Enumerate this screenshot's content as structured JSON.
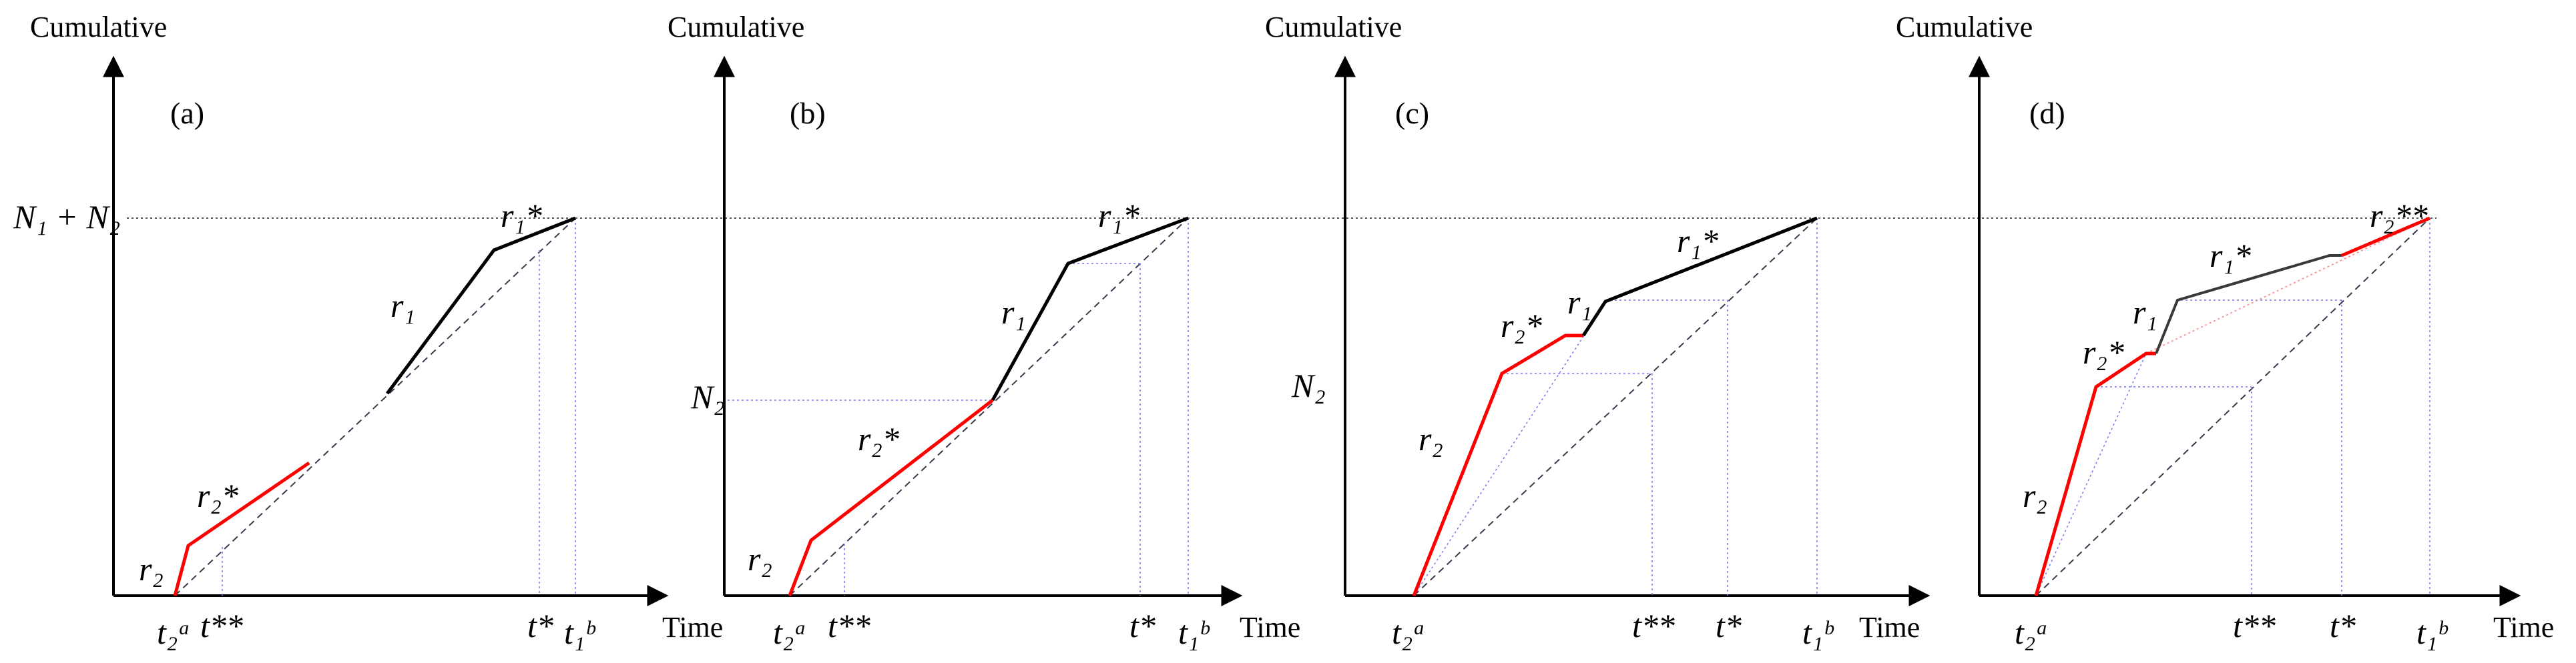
{
  "colors": {
    "axis": "#000000",
    "red": "#ff0000",
    "black": "#000000",
    "dashed": "#3a3a4e",
    "guide": "#7777ee",
    "pink": "#ff9999"
  },
  "common": {
    "y_label": "Cumulative",
    "x_label": "Time",
    "reference_level": "N₁ + N₂"
  },
  "panels": [
    {
      "label": "(a)",
      "ticks": [
        "t₂ᵃ",
        "t**",
        "t*",
        "t₁ᵇ"
      ],
      "left_level": "N₁ + N₂",
      "curves": [
        "r₂",
        "r₂*",
        "r₁",
        "r₁*"
      ]
    },
    {
      "label": "(b)",
      "ticks": [
        "t₂ᵃ",
        "t**",
        "t*",
        "t₁ᵇ"
      ],
      "left_level": "N₂",
      "curves": [
        "r₂",
        "r₂*",
        "r₁",
        "r₁*"
      ]
    },
    {
      "label": "(c)",
      "ticks": [
        "t₂ᵃ",
        "t**",
        "t*",
        "t₁ᵇ"
      ],
      "left_level": "N₂",
      "curves": [
        "r₂",
        "r₂*",
        "r₁",
        "r₁*"
      ]
    },
    {
      "label": "(d)",
      "ticks": [
        "t₂ᵃ",
        "t**",
        "t*",
        "t₁ᵇ"
      ],
      "left_level": "",
      "curves": [
        "r₂",
        "r₂*",
        "r₁",
        "r₁*",
        "r₂**"
      ]
    }
  ]
}
